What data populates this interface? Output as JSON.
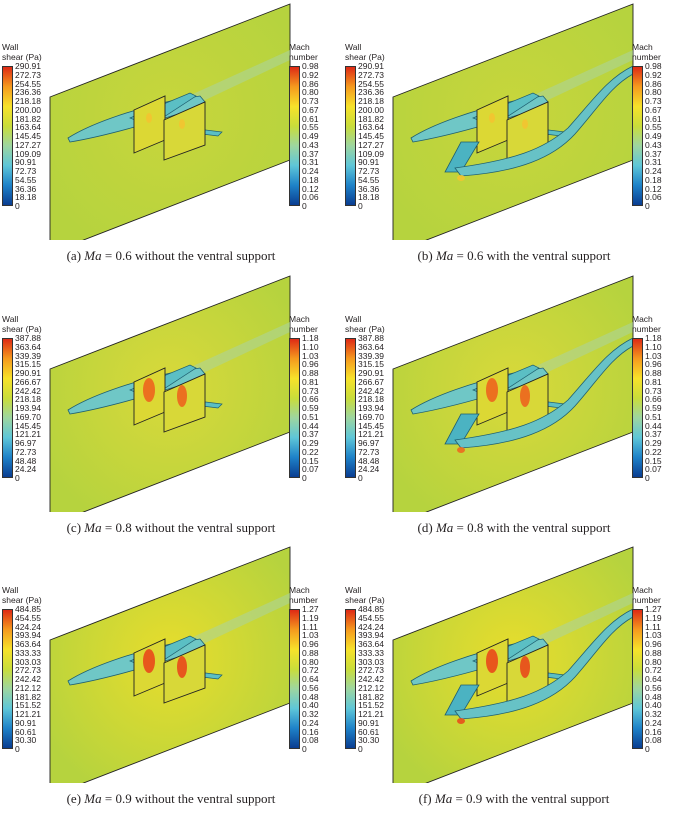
{
  "colorbar_gradient": [
    "#0a3d91",
    "#1e82c8",
    "#5ec6d8",
    "#9dd6a0",
    "#c9dd3a",
    "#f7e22a",
    "#f59a1e",
    "#de2a15"
  ],
  "panels": [
    {
      "id": "a",
      "caption_prefix": "(a) ",
      "caption_italic": "Ma",
      "caption_rest": " = 0.6 without the ventral support",
      "has_ventral_support": false,
      "intensity": "low",
      "wall_shear": {
        "title_line1": "Wall",
        "title_line2": "shear (Pa)",
        "ticks": [
          "290.91",
          "272.73",
          "254.55",
          "236.36",
          "218.18",
          "200.00",
          "181.82",
          "163.64",
          "145.45",
          "127.27",
          "109.09",
          "90.91",
          "72.73",
          "54.55",
          "36.36",
          "18.18",
          "0"
        ]
      },
      "mach": {
        "title_line1": "Mach",
        "title_line2": "number",
        "ticks": [
          "0.98",
          "0.92",
          "0.86",
          "0.80",
          "0.73",
          "0.67",
          "0.61",
          "0.55",
          "0.49",
          "0.43",
          "0.37",
          "0.31",
          "0.24",
          "0.18",
          "0.12",
          "0.06",
          "0"
        ]
      }
    },
    {
      "id": "b",
      "caption_prefix": "(b) ",
      "caption_italic": "Ma",
      "caption_rest": " = 0.6 with the ventral support",
      "has_ventral_support": true,
      "intensity": "low",
      "wall_shear": {
        "title_line1": "Wall",
        "title_line2": "shear (Pa)",
        "ticks": [
          "290.91",
          "272.73",
          "254.55",
          "236.36",
          "218.18",
          "200.00",
          "181.82",
          "163.64",
          "145.45",
          "127.27",
          "109.09",
          "90.91",
          "72.73",
          "54.55",
          "36.36",
          "18.18",
          "0"
        ]
      },
      "mach": {
        "title_line1": "Mach",
        "title_line2": "number",
        "ticks": [
          "0.98",
          "0.92",
          "0.86",
          "0.80",
          "0.73",
          "0.67",
          "0.61",
          "0.55",
          "0.49",
          "0.43",
          "0.37",
          "0.31",
          "0.24",
          "0.18",
          "0.12",
          "0.06",
          "0"
        ]
      }
    },
    {
      "id": "c",
      "caption_prefix": "(c) ",
      "caption_italic": "Ma",
      "caption_rest": " = 0.8 without the ventral support",
      "has_ventral_support": false,
      "intensity": "mid",
      "wall_shear": {
        "title_line1": "Wall",
        "title_line2": "shear (Pa)",
        "ticks": [
          "387.88",
          "363.64",
          "339.39",
          "315.15",
          "290.91",
          "266.67",
          "242.42",
          "218.18",
          "193.94",
          "169.70",
          "145.45",
          "121.21",
          "96.97",
          "72.73",
          "48.48",
          "24.24",
          "0"
        ]
      },
      "mach": {
        "title_line1": "Mach",
        "title_line2": "number",
        "ticks": [
          "1.18",
          "1.10",
          "1.03",
          "0.96",
          "0.88",
          "0.81",
          "0.73",
          "0.66",
          "0.59",
          "0.51",
          "0.44",
          "0.37",
          "0.29",
          "0.22",
          "0.15",
          "0.07",
          "0"
        ]
      }
    },
    {
      "id": "d",
      "caption_prefix": "(d) ",
      "caption_italic": "Ma",
      "caption_rest": " = 0.8 with the ventral support",
      "has_ventral_support": true,
      "intensity": "mid",
      "wall_shear": {
        "title_line1": "Wall",
        "title_line2": "shear (Pa)",
        "ticks": [
          "387.88",
          "363.64",
          "339.39",
          "315.15",
          "290.91",
          "266.67",
          "242.42",
          "218.18",
          "193.94",
          "169.70",
          "145.45",
          "121.21",
          "96.97",
          "72.73",
          "48.48",
          "24.24",
          "0"
        ]
      },
      "mach": {
        "title_line1": "Mach",
        "title_line2": "number",
        "ticks": [
          "1.18",
          "1.10",
          "1.03",
          "0.96",
          "0.88",
          "0.81",
          "0.73",
          "0.66",
          "0.59",
          "0.51",
          "0.44",
          "0.37",
          "0.29",
          "0.22",
          "0.15",
          "0.07",
          "0"
        ]
      }
    },
    {
      "id": "e",
      "caption_prefix": "(e) ",
      "caption_italic": "Ma",
      "caption_rest": " = 0.9 without the ventral support",
      "has_ventral_support": false,
      "intensity": "high",
      "wall_shear": {
        "title_line1": "Wall",
        "title_line2": "shear (Pa)",
        "ticks": [
          "484.85",
          "454.55",
          "424.24",
          "393.94",
          "363.64",
          "333.33",
          "303.03",
          "272.73",
          "242.42",
          "212.12",
          "181.82",
          "151.52",
          "121.21",
          "90.91",
          "60.61",
          "30.30",
          "0"
        ]
      },
      "mach": {
        "title_line1": "Mach",
        "title_line2": "number",
        "ticks": [
          "1.27",
          "1.19",
          "1.11",
          "1.03",
          "0.96",
          "0.88",
          "0.80",
          "0.72",
          "0.64",
          "0.56",
          "0.48",
          "0.40",
          "0.32",
          "0.24",
          "0.16",
          "0.08",
          "0"
        ]
      }
    },
    {
      "id": "f",
      "caption_prefix": "(f) ",
      "caption_italic": "Ma",
      "caption_rest": " = 0.9 with the ventral support",
      "has_ventral_support": true,
      "intensity": "high",
      "wall_shear": {
        "title_line1": "Wall",
        "title_line2": "shear (Pa)",
        "ticks": [
          "484.85",
          "454.55",
          "424.24",
          "393.94",
          "363.64",
          "333.33",
          "303.03",
          "272.73",
          "242.42",
          "212.12",
          "181.82",
          "151.52",
          "121.21",
          "90.91",
          "60.61",
          "30.30",
          "0"
        ]
      },
      "mach": {
        "title_line1": "Mach",
        "title_line2": "number",
        "ticks": [
          "1.27",
          "1.19",
          "1.11",
          "1.03",
          "0.96",
          "0.88",
          "0.80",
          "0.72",
          "0.64",
          "0.56",
          "0.48",
          "0.40",
          "0.32",
          "0.24",
          "0.16",
          "0.08",
          "0"
        ]
      }
    }
  ]
}
